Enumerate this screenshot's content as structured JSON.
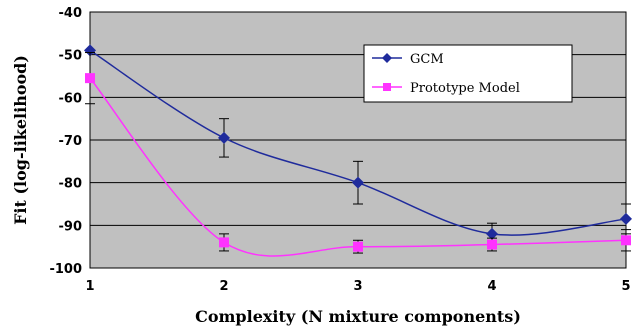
{
  "chart_data": {
    "type": "line",
    "title": "",
    "xlabel": "Complexity (N mixture components)",
    "ylabel": "Fit (log-likelihood)",
    "x": [
      1,
      2,
      3,
      4,
      5
    ],
    "xlim": [
      1,
      5
    ],
    "ylim": [
      -100,
      -40
    ],
    "xticks": [
      "1",
      "2",
      "3",
      "4",
      "5"
    ],
    "yticks": [
      "-40",
      "-50",
      "-60",
      "-70",
      "-80",
      "-90",
      "-100"
    ],
    "grid": "horizontal",
    "background_color": "#c0c0c0",
    "legend_position": "top-right",
    "series": [
      {
        "name": "GCM",
        "values": [
          -49,
          -69.5,
          -80,
          -92,
          -88.5
        ],
        "error": [
          0,
          4.5,
          5,
          2.5,
          3.5
        ],
        "color": "#1f2b9c",
        "marker": "diamond"
      },
      {
        "name": "Prototype Model",
        "values": [
          -55.5,
          -94,
          -95,
          -94.5,
          -93.5
        ],
        "error": [
          6,
          2,
          1.5,
          1.5,
          2.5
        ],
        "color": "#ff33ff",
        "marker": "square"
      }
    ]
  }
}
